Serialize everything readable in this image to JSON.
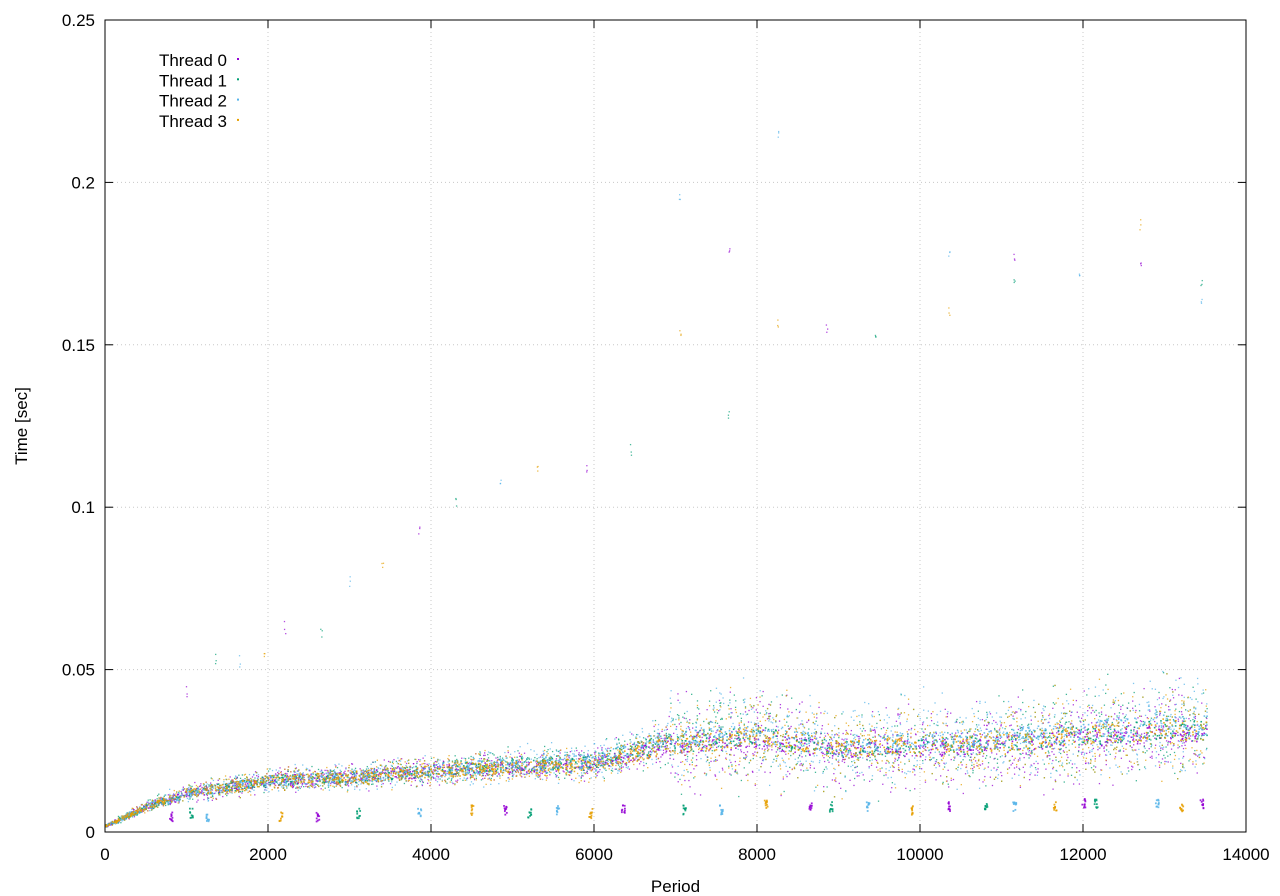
{
  "chart_data": {
    "type": "scatter",
    "title": "",
    "xlabel": "Period",
    "ylabel": "Time [sec]",
    "xlim": [
      0,
      14000
    ],
    "ylim": [
      0,
      0.25
    ],
    "x_ticks": [
      "0",
      "2000",
      "4000",
      "6000",
      "8000",
      "10000",
      "12000",
      "14000"
    ],
    "y_ticks": [
      "0",
      "0.05",
      "0.1",
      "0.15",
      "0.2",
      "0.25"
    ],
    "grid": true,
    "legend_position": "top-left",
    "series": [
      {
        "name": "Thread 0",
        "color": "#9400d3",
        "x": [
          0,
          250,
          500,
          1000,
          1500,
          2000,
          3000,
          4000,
          5000,
          6000,
          6900,
          7500,
          8000,
          9000,
          10000,
          11000,
          12000,
          13000,
          13500
        ],
        "y": [
          0.002,
          0.005,
          0.008,
          0.012,
          0.014,
          0.016,
          0.017,
          0.019,
          0.02,
          0.021,
          0.027,
          0.028,
          0.029,
          0.025,
          0.026,
          0.027,
          0.029,
          0.031,
          0.03
        ]
      },
      {
        "name": "Thread 1",
        "color": "#009e73",
        "x": [
          0,
          250,
          500,
          1000,
          1500,
          2000,
          3000,
          4000,
          5000,
          6000,
          6900,
          7500,
          8000,
          9000,
          10000,
          11000,
          12000,
          13000,
          13500
        ],
        "y": [
          0.002,
          0.005,
          0.008,
          0.012,
          0.014,
          0.016,
          0.017,
          0.019,
          0.021,
          0.022,
          0.028,
          0.029,
          0.03,
          0.026,
          0.027,
          0.028,
          0.03,
          0.032,
          0.031
        ]
      },
      {
        "name": "Thread 2",
        "color": "#56b4e9",
        "x": [
          0,
          250,
          500,
          1000,
          1500,
          2000,
          3000,
          4000,
          5000,
          6000,
          6900,
          7500,
          8000,
          9000,
          10000,
          11000,
          12000,
          13000,
          13500
        ],
        "y": [
          0.002,
          0.005,
          0.008,
          0.012,
          0.014,
          0.016,
          0.017,
          0.019,
          0.021,
          0.022,
          0.029,
          0.03,
          0.031,
          0.027,
          0.028,
          0.029,
          0.031,
          0.033,
          0.033
        ]
      },
      {
        "name": "Thread 3",
        "color": "#e69f00",
        "x": [
          0,
          250,
          500,
          1000,
          1500,
          2000,
          3000,
          4000,
          5000,
          6000,
          6900,
          7500,
          8000,
          9000,
          10000,
          11000,
          12000,
          13000,
          13500
        ],
        "y": [
          0.002,
          0.005,
          0.008,
          0.012,
          0.014,
          0.016,
          0.017,
          0.019,
          0.02,
          0.021,
          0.027,
          0.028,
          0.03,
          0.026,
          0.027,
          0.028,
          0.03,
          0.032,
          0.031
        ]
      }
    ],
    "outliers": [
      {
        "x": 1000,
        "y": 0.043
      },
      {
        "x": 1350,
        "y": 0.053
      },
      {
        "x": 1650,
        "y": 0.053
      },
      {
        "x": 1950,
        "y": 0.056
      },
      {
        "x": 2200,
        "y": 0.063
      },
      {
        "x": 2650,
        "y": 0.062
      },
      {
        "x": 3000,
        "y": 0.077
      },
      {
        "x": 3400,
        "y": 0.083
      },
      {
        "x": 3850,
        "y": 0.093
      },
      {
        "x": 4300,
        "y": 0.102
      },
      {
        "x": 4850,
        "y": 0.107
      },
      {
        "x": 5300,
        "y": 0.113
      },
      {
        "x": 5900,
        "y": 0.112
      },
      {
        "x": 6450,
        "y": 0.118
      },
      {
        "x": 7050,
        "y": 0.195
      },
      {
        "x": 7050,
        "y": 0.155
      },
      {
        "x": 7650,
        "y": 0.18
      },
      {
        "x": 7650,
        "y": 0.128
      },
      {
        "x": 8250,
        "y": 0.215
      },
      {
        "x": 8250,
        "y": 0.157
      },
      {
        "x": 8850,
        "y": 0.155
      },
      {
        "x": 9450,
        "y": 0.152
      },
      {
        "x": 10350,
        "y": 0.177
      },
      {
        "x": 10350,
        "y": 0.16
      },
      {
        "x": 11150,
        "y": 0.177
      },
      {
        "x": 11150,
        "y": 0.17
      },
      {
        "x": 11950,
        "y": 0.172
      },
      {
        "x": 12700,
        "y": 0.187
      },
      {
        "x": 12700,
        "y": 0.176
      },
      {
        "x": 13450,
        "y": 0.168
      },
      {
        "x": 13450,
        "y": 0.163
      }
    ],
    "low_clusters": [
      {
        "x": 800,
        "y": 0.005
      },
      {
        "x": 1050,
        "y": 0.006
      },
      {
        "x": 1250,
        "y": 0.005
      },
      {
        "x": 2150,
        "y": 0.005
      },
      {
        "x": 2600,
        "y": 0.005
      },
      {
        "x": 3100,
        "y": 0.006
      },
      {
        "x": 3850,
        "y": 0.006
      },
      {
        "x": 4500,
        "y": 0.007
      },
      {
        "x": 4900,
        "y": 0.007
      },
      {
        "x": 5200,
        "y": 0.006
      },
      {
        "x": 5550,
        "y": 0.007
      },
      {
        "x": 5950,
        "y": 0.006
      },
      {
        "x": 6350,
        "y": 0.007
      },
      {
        "x": 7100,
        "y": 0.007
      },
      {
        "x": 7550,
        "y": 0.007
      },
      {
        "x": 8100,
        "y": 0.009
      },
      {
        "x": 8650,
        "y": 0.008
      },
      {
        "x": 8900,
        "y": 0.008
      },
      {
        "x": 9350,
        "y": 0.008
      },
      {
        "x": 9900,
        "y": 0.007
      },
      {
        "x": 10350,
        "y": 0.008
      },
      {
        "x": 10800,
        "y": 0.008
      },
      {
        "x": 11150,
        "y": 0.008
      },
      {
        "x": 11650,
        "y": 0.008
      },
      {
        "x": 12000,
        "y": 0.009
      },
      {
        "x": 12150,
        "y": 0.009
      },
      {
        "x": 12900,
        "y": 0.009
      },
      {
        "x": 13200,
        "y": 0.008
      },
      {
        "x": 13450,
        "y": 0.009
      }
    ]
  }
}
